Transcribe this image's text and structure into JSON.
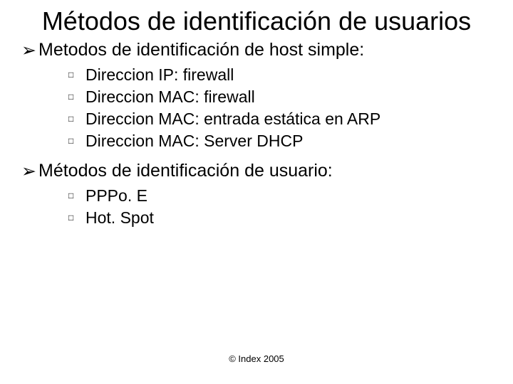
{
  "slide": {
    "title": "Métodos de identificación de usuarios",
    "sections": [
      {
        "heading": "Metodos de identificación de host simple:",
        "items": [
          "Direccion IP: firewall",
          "Direccion MAC: firewall",
          "Direccion MAC: entrada estática en ARP",
          "Direccion MAC: Server DHCP"
        ]
      },
      {
        "heading": "Métodos de identificación de usuario:",
        "items": [
          "PPPo. E",
          "Hot. Spot"
        ]
      }
    ],
    "footer": "© Index 2005",
    "bullets": {
      "level1": "➢",
      "level2": "□"
    },
    "colors": {
      "background": "#ffffff",
      "text": "#000000"
    },
    "fontsizes": {
      "title": 36,
      "level1": 25,
      "level2": 23,
      "footer": 13
    }
  }
}
